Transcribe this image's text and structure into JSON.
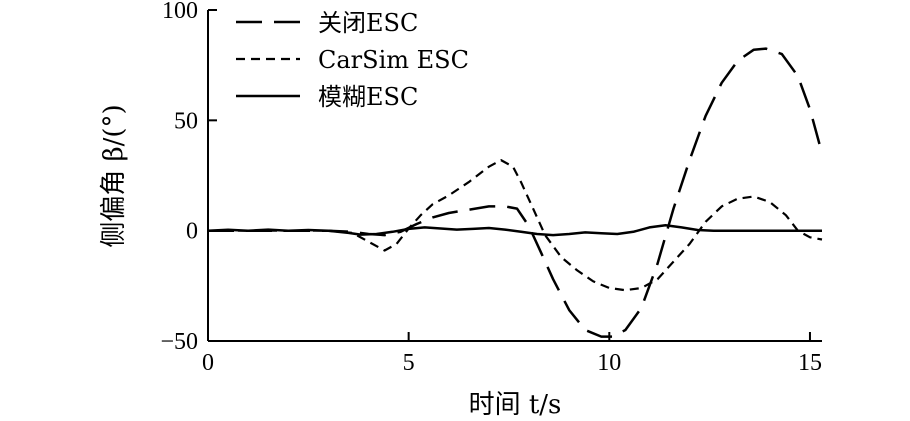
{
  "chart_data": {
    "type": "line",
    "xlabel": "时间 t/s",
    "ylabel": "侧偏角 β/(°)",
    "xlim": [
      0,
      15.3
    ],
    "ylim": [
      -50,
      100
    ],
    "xticks": [
      0,
      5,
      10,
      15
    ],
    "yticks": [
      -50,
      0,
      50,
      100
    ],
    "ytick_labels": [
      "−50",
      "0",
      "50",
      "100"
    ],
    "grid": false,
    "legend_position": "top-left",
    "series": [
      {
        "name": "关闭ESC",
        "style": "long-dash",
        "x": [
          0,
          1,
          2,
          3,
          3.6,
          4.0,
          4.4,
          4.8,
          5.2,
          5.6,
          6.0,
          6.5,
          7.0,
          7.4,
          7.7,
          8.0,
          8.3,
          8.6,
          9.0,
          9.4,
          9.8,
          10.1,
          10.4,
          10.8,
          11.2,
          11.6,
          12.0,
          12.4,
          12.8,
          13.2,
          13.6,
          13.9,
          14.3,
          14.7,
          15.0,
          15.3
        ],
        "y": [
          0,
          0,
          0,
          0,
          -0.5,
          -1.5,
          -2,
          -0.5,
          3,
          6,
          8,
          9.5,
          11,
          11,
          10,
          2,
          -10,
          -22,
          -36,
          -45,
          -48,
          -48,
          -45,
          -35,
          -15,
          10,
          32,
          52,
          67,
          77,
          82,
          82.5,
          80,
          70,
          55,
          35
        ]
      },
      {
        "name": "CarSim ESC",
        "style": "short-dash",
        "x": [
          0,
          1,
          2,
          3,
          3.6,
          4.0,
          4.4,
          4.7,
          5.0,
          5.3,
          5.6,
          6.0,
          6.5,
          7.0,
          7.3,
          7.6,
          7.8,
          8.1,
          8.4,
          8.8,
          9.2,
          9.6,
          10.0,
          10.4,
          10.8,
          11.2,
          11.6,
          12.0,
          12.4,
          12.8,
          13.2,
          13.6,
          14.0,
          14.4,
          14.7,
          15.0,
          15.3
        ],
        "y": [
          0,
          0,
          0,
          0,
          -1,
          -5,
          -9,
          -6,
          1,
          7,
          12,
          16,
          22,
          29,
          32,
          29,
          22,
          10,
          -2,
          -12,
          -18,
          -23,
          -26,
          -27,
          -26,
          -22,
          -14,
          -6,
          4,
          11,
          14.5,
          15.5,
          13,
          7,
          0,
          -3,
          -4
        ]
      },
      {
        "name": "模糊ESC",
        "style": "solid",
        "x": [
          0,
          0.5,
          1,
          1.5,
          2,
          2.5,
          3,
          3.5,
          3.8,
          4.2,
          4.6,
          5.0,
          5.4,
          5.8,
          6.2,
          6.6,
          7.0,
          7.4,
          7.8,
          8.2,
          8.6,
          9.0,
          9.4,
          9.8,
          10.2,
          10.6,
          11.0,
          11.4,
          11.8,
          12.2,
          12.6,
          13.0,
          13.5,
          14.0,
          14.5,
          15.0,
          15.3
        ],
        "y": [
          0,
          0.4,
          0,
          0.5,
          0,
          0.3,
          0,
          -1,
          -1.8,
          -1.5,
          -0.5,
          0.8,
          1.5,
          1,
          0.5,
          0.8,
          1.2,
          0.5,
          -0.5,
          -1.5,
          -2,
          -1.5,
          -0.8,
          -1.2,
          -1.5,
          -0.5,
          1.5,
          2.5,
          1.5,
          0.3,
          0,
          0,
          0,
          0,
          0,
          0,
          0
        ]
      }
    ]
  }
}
